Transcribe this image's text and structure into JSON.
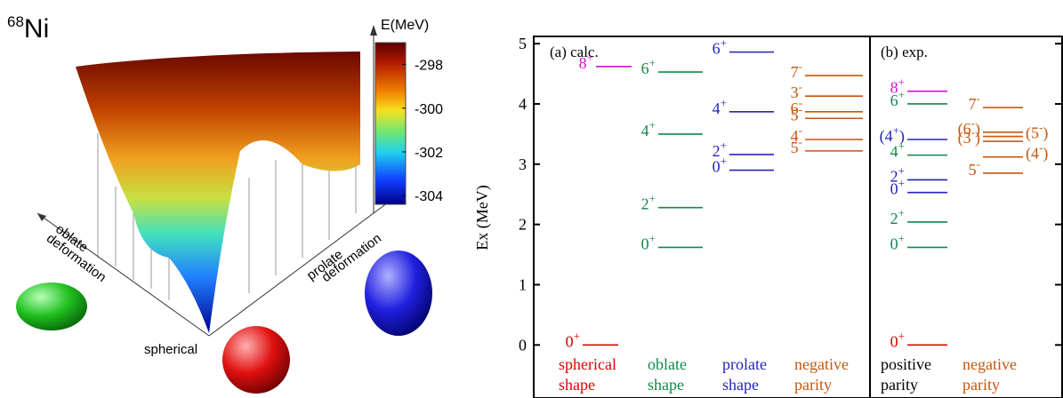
{
  "surface": {
    "mass": "68",
    "element": "Ni",
    "colorbar_label": "E(MeV)",
    "colorbar_lim": [
      -297.0,
      -304.4
    ],
    "colorbar_ticks": [
      -298,
      -300,
      -302,
      -304
    ],
    "oblate_label": [
      "oblate",
      "deformation"
    ],
    "prolate_label": [
      "prolate",
      "deformation"
    ],
    "origin_label": "spherical"
  },
  "chart_data": {
    "type": "level-scheme",
    "ylabel": "Ex (MeV)",
    "ylim": [
      -0.88,
      5.12
    ],
    "yticks": [
      0,
      1,
      2,
      3,
      4,
      5
    ],
    "panels": [
      {
        "title": "(a) calc.",
        "columns": [
          {
            "name": [
              "spherical",
              "shape"
            ],
            "color": "#e00000",
            "levels": [
              {
                "label": "0+",
                "energy": 0,
                "color": "#e00000"
              },
              {
                "label": "8+",
                "energy": 4.62,
                "color": "#d010d0"
              }
            ]
          },
          {
            "name": [
              "oblate",
              "shape"
            ],
            "color": "#11884a",
            "levels": [
              {
                "label": "6+",
                "energy": 4.53,
                "color": "#11884a"
              },
              {
                "label": "4+",
                "energy": 3.5,
                "color": "#11884a"
              },
              {
                "label": "2+",
                "energy": 2.28,
                "color": "#11884a"
              },
              {
                "label": "0+",
                "energy": 1.62,
                "color": "#11884a"
              }
            ]
          },
          {
            "name": [
              "prolate",
              "shape"
            ],
            "color": "#2424b8",
            "levels": [
              {
                "label": "6+",
                "energy": 4.86,
                "color": "#2424b8"
              },
              {
                "label": "4+",
                "energy": 3.87,
                "color": "#2424b8"
              },
              {
                "label": "2+",
                "energy": 3.16,
                "color": "#2424b8"
              },
              {
                "label": "0+",
                "energy": 2.9,
                "color": "#2424b8"
              }
            ]
          },
          {
            "name": [
              "negative",
              "parity"
            ],
            "color": "#c4560e",
            "levels": [
              {
                "label": "7-",
                "energy": 4.47,
                "color": "#c4560e"
              },
              {
                "label": "3-",
                "energy": 4.13,
                "color": "#c4560e"
              },
              {
                "label": "6-",
                "energy": 3.87,
                "color": "#c4560e"
              },
              {
                "label": "5-",
                "energy": 3.76,
                "color": "#c4560e"
              },
              {
                "label": "4-",
                "energy": 3.41,
                "color": "#c4560e"
              },
              {
                "label": "5-",
                "energy": 3.22,
                "color": "#c4560e"
              }
            ]
          }
        ]
      },
      {
        "title": "(b) exp.",
        "columns": [
          {
            "name": [
              "positive",
              "parity"
            ],
            "color": "#000000",
            "levels": [
              {
                "label": "8+",
                "energy": 4.21,
                "color": "#d010d0"
              },
              {
                "label": "6+",
                "energy": 4.0,
                "color": "#11884a"
              },
              {
                "label": "(4+)",
                "energy": 3.41,
                "color": "#2424b8"
              },
              {
                "label": "4+",
                "energy": 3.15,
                "color": "#11884a"
              },
              {
                "label": "2+",
                "energy": 2.74,
                "color": "#2424b8"
              },
              {
                "label": "0+",
                "energy": 2.53,
                "color": "#2424b8"
              },
              {
                "label": "2+",
                "energy": 2.04,
                "color": "#11884a"
              },
              {
                "label": "0+",
                "energy": 1.62,
                "color": "#11884a"
              },
              {
                "label": "0+",
                "energy": 0,
                "color": "#e00000"
              }
            ]
          },
          {
            "name": [
              "negative",
              "parity"
            ],
            "color": "#c4560e",
            "levels": [
              {
                "label": "7-",
                "energy": 3.94,
                "color": "#c4560e"
              },
              {
                "label": "(6-)",
                "energy": 3.53,
                "color": "#c4560e"
              },
              {
                "label": "(5-)",
                "energy": 3.46,
                "color": "#c4560e"
              },
              {
                "label": "(3-)",
                "energy": 3.38,
                "color": "#c4560e"
              },
              {
                "label": "(4-)",
                "energy": 3.12,
                "color": "#c4560e"
              },
              {
                "label": "5-",
                "energy": 2.85,
                "color": "#c4560e"
              }
            ]
          }
        ]
      }
    ]
  }
}
